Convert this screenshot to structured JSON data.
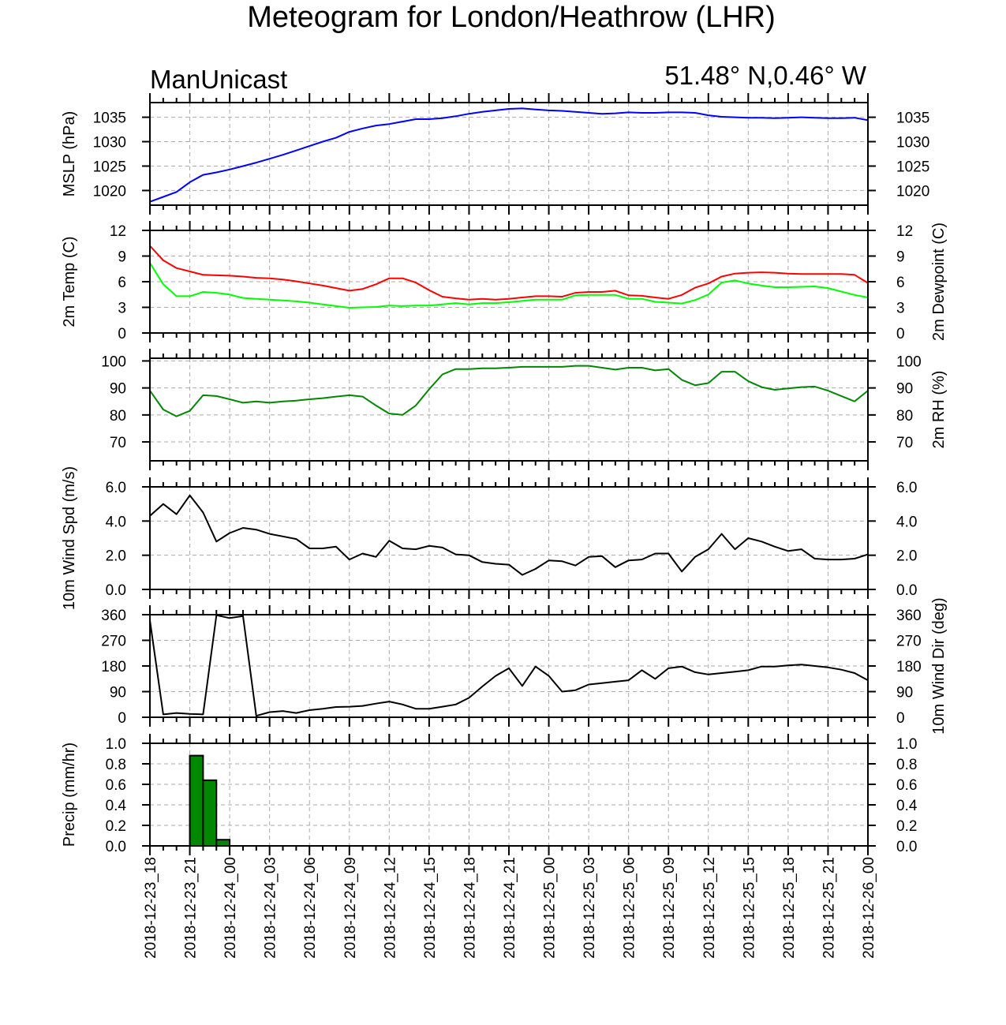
{
  "title": "Meteogram for London/Heathrow (LHR)",
  "subtitle_left": "ManUnicast",
  "subtitle_right": "51.48° N,0.46° W",
  "time_labels": [
    "2018-12-23_18",
    "2018-12-23_21",
    "2018-12-24_00",
    "2018-12-24_03",
    "2018-12-24_06",
    "2018-12-24_09",
    "2018-12-24_12",
    "2018-12-24_15",
    "2018-12-24_18",
    "2018-12-24_21",
    "2018-12-25_00",
    "2018-12-25_03",
    "2018-12-25_06",
    "2018-12-25_09",
    "2018-12-25_12",
    "2018-12-25_15",
    "2018-12-25_18",
    "2018-12-25_21",
    "2018-12-26_00"
  ],
  "colors": {
    "mslp": "#0000ff",
    "temp": "#ff0000",
    "dewpoint": "#00ff00",
    "rh": "#008800",
    "wind": "#000000",
    "precip": "#008800"
  },
  "chart_data": [
    {
      "type": "line",
      "ylabel": "MSLP (hPa)",
      "ylim": [
        1017,
        1038
      ],
      "yticks": [
        "1020",
        "1025",
        "1030",
        "1035"
      ],
      "right_ylabel": "",
      "x_hours": [
        0,
        1,
        2,
        3,
        4,
        5,
        6,
        7,
        8,
        9,
        10,
        11,
        12,
        13,
        14,
        15,
        16,
        17,
        18,
        19,
        20,
        21,
        22,
        23,
        24,
        25,
        26,
        27,
        28,
        29,
        30,
        31,
        32,
        33,
        34,
        35,
        36,
        37,
        38,
        39,
        40,
        41,
        42,
        43,
        44,
        45,
        46,
        47,
        48,
        49,
        50,
        51,
        52,
        53,
        54
      ],
      "series": [
        {
          "name": "",
          "values": [
            1017.7,
            1018.7,
            1019.7,
            1021.7,
            1023.2,
            1023.7,
            1024.3,
            1025.0,
            1025.7,
            1026.5,
            1027.3,
            1028.2,
            1029.1,
            1030.0,
            1030.8,
            1032.0,
            1032.7,
            1033.3,
            1033.6,
            1034.1,
            1034.6,
            1034.6,
            1034.8,
            1035.2,
            1035.7,
            1036.1,
            1036.4,
            1036.7,
            1036.8,
            1036.6,
            1036.4,
            1036.3,
            1036.1,
            1035.9,
            1035.7,
            1035.8,
            1036.0,
            1035.9,
            1035.9,
            1036.0,
            1036.0,
            1035.9,
            1035.4,
            1035.1,
            1035.0,
            1034.9,
            1034.9,
            1034.8,
            1034.9,
            1035.0,
            1034.9,
            1034.8,
            1034.8,
            1034.9,
            1034.4
          ]
        }
      ]
    },
    {
      "type": "line",
      "ylabel": "2m Temp (C)",
      "right_ylabel": "2m Dewpoint (C)",
      "ylim": [
        0,
        12
      ],
      "yticks": [
        "0",
        "3",
        "6",
        "9",
        "12"
      ],
      "x_hours": [
        0,
        1,
        2,
        3,
        4,
        5,
        6,
        7,
        8,
        9,
        10,
        11,
        12,
        13,
        14,
        15,
        16,
        17,
        18,
        19,
        20,
        21,
        22,
        23,
        24,
        25,
        26,
        27,
        28,
        29,
        30,
        31,
        32,
        33,
        34,
        35,
        36,
        37,
        38,
        39,
        40,
        41,
        42,
        43,
        44,
        45,
        46,
        47,
        48,
        49,
        50,
        51,
        52,
        53,
        54
      ],
      "series": [
        {
          "name": "",
          "values": [
            10.2,
            8.5,
            7.6,
            7.2,
            6.8,
            6.75,
            6.7,
            6.6,
            6.45,
            6.4,
            6.25,
            6.05,
            5.8,
            5.55,
            5.25,
            4.95,
            5.15,
            5.7,
            6.4,
            6.4,
            5.9,
            5.0,
            4.25,
            4.05,
            3.9,
            4.0,
            3.9,
            4.0,
            4.15,
            4.3,
            4.3,
            4.25,
            4.7,
            4.8,
            4.8,
            4.95,
            4.4,
            4.35,
            4.15,
            4.0,
            4.45,
            5.3,
            5.8,
            6.6,
            6.95,
            7.05,
            7.1,
            7.05,
            6.95,
            6.9,
            6.9,
            6.9,
            6.9,
            6.8,
            5.85
          ]
        },
        {
          "name": "",
          "values": [
            8.2,
            5.7,
            4.3,
            4.3,
            4.8,
            4.7,
            4.5,
            4.1,
            4.0,
            3.9,
            3.8,
            3.7,
            3.55,
            3.35,
            3.15,
            2.95,
            3.0,
            3.05,
            3.2,
            3.15,
            3.2,
            3.2,
            3.35,
            3.5,
            3.35,
            3.5,
            3.5,
            3.6,
            3.75,
            3.9,
            3.9,
            3.9,
            4.4,
            4.45,
            4.45,
            4.45,
            4.0,
            4.0,
            3.65,
            3.55,
            3.45,
            3.85,
            4.5,
            5.9,
            6.15,
            5.8,
            5.55,
            5.35,
            5.35,
            5.4,
            5.45,
            5.25,
            4.85,
            4.45,
            4.15
          ]
        }
      ]
    },
    {
      "type": "line",
      "ylabel": "",
      "right_ylabel": "2m RH (%)",
      "ylim": [
        63,
        101
      ],
      "yticks": [
        "70",
        "80",
        "90",
        "100"
      ],
      "x_hours": [
        0,
        1,
        2,
        3,
        4,
        5,
        6,
        7,
        8,
        9,
        10,
        11,
        12,
        13,
        14,
        15,
        16,
        17,
        18,
        19,
        20,
        21,
        22,
        23,
        24,
        25,
        26,
        27,
        28,
        29,
        30,
        31,
        32,
        33,
        34,
        35,
        36,
        37,
        38,
        39,
        40,
        41,
        42,
        43,
        44,
        45,
        46,
        47,
        48,
        49,
        50,
        51,
        52,
        53,
        54
      ],
      "series": [
        {
          "name": "",
          "values": [
            89.0,
            82.0,
            79.5,
            81.5,
            87.3,
            87.0,
            85.8,
            84.5,
            85.0,
            84.5,
            85.0,
            85.3,
            85.8,
            86.2,
            86.8,
            87.3,
            86.8,
            83.5,
            80.5,
            80.0,
            83.5,
            89.5,
            95.0,
            97.0,
            97.0,
            97.3,
            97.3,
            97.5,
            97.8,
            97.8,
            97.8,
            97.8,
            98.2,
            98.2,
            97.5,
            96.8,
            97.5,
            97.5,
            96.5,
            97.0,
            93.0,
            91.0,
            91.8,
            96.0,
            96.0,
            92.5,
            90.3,
            89.3,
            89.8,
            90.3,
            90.5,
            89.0,
            87.0,
            85.0,
            89.0
          ]
        }
      ]
    },
    {
      "type": "line",
      "ylabel": "10m Wind Spd (m/s)",
      "right_ylabel": "",
      "ylim": [
        0,
        6
      ],
      "yticks": [
        "0.0",
        "2.0",
        "4.0",
        "6.0"
      ],
      "x_hours": [
        0,
        1,
        2,
        3,
        4,
        5,
        6,
        7,
        8,
        9,
        10,
        11,
        12,
        13,
        14,
        15,
        16,
        17,
        18,
        19,
        20,
        21,
        22,
        23,
        24,
        25,
        26,
        27,
        28,
        29,
        30,
        31,
        32,
        33,
        34,
        35,
        36,
        37,
        38,
        39,
        40,
        41,
        42,
        43,
        44,
        45,
        46,
        47,
        48,
        49,
        50,
        51,
        52,
        53,
        54
      ],
      "series": [
        {
          "name": "",
          "values": [
            4.3,
            5.0,
            4.4,
            5.5,
            4.5,
            2.8,
            3.3,
            3.6,
            3.5,
            3.25,
            3.1,
            2.95,
            2.4,
            2.4,
            2.5,
            1.75,
            2.1,
            1.9,
            2.85,
            2.4,
            2.35,
            2.55,
            2.45,
            2.05,
            2.0,
            1.6,
            1.5,
            1.45,
            0.85,
            1.2,
            1.7,
            1.65,
            1.4,
            1.9,
            1.95,
            1.3,
            1.7,
            1.75,
            2.1,
            2.1,
            1.05,
            1.9,
            2.35,
            3.25,
            2.35,
            3.0,
            2.8,
            2.5,
            2.25,
            2.35,
            1.8,
            1.75,
            1.75,
            1.8,
            2.05
          ]
        }
      ]
    },
    {
      "type": "line",
      "ylabel": "",
      "right_ylabel": "10m Wind Dir (deg)",
      "ylim": [
        0,
        360
      ],
      "yticks": [
        "0",
        "90",
        "180",
        "270",
        "360"
      ],
      "x_hours": [
        0,
        1,
        2,
        3,
        4,
        5,
        6,
        7,
        8,
        9,
        10,
        11,
        12,
        13,
        14,
        15,
        16,
        17,
        18,
        19,
        20,
        21,
        22,
        23,
        24,
        25,
        26,
        27,
        28,
        29,
        30,
        31,
        32,
        33,
        34,
        35,
        36,
        37,
        38,
        39,
        40,
        41,
        42,
        43,
        44,
        45,
        46,
        47,
        48,
        49,
        50,
        51,
        52,
        53,
        54
      ],
      "series": [
        {
          "name": "",
          "values": [
            340,
            10,
            15,
            12,
            10,
            358,
            348,
            355,
            5,
            18,
            22,
            15,
            25,
            30,
            36,
            37,
            40,
            48,
            55,
            45,
            30,
            30,
            37,
            45,
            68,
            108,
            145,
            172,
            110,
            178,
            145,
            90,
            95,
            115,
            120,
            125,
            130,
            165,
            135,
            172,
            178,
            158,
            150,
            155,
            160,
            165,
            178,
            178,
            182,
            185,
            180,
            175,
            167,
            155,
            130
          ]
        }
      ]
    },
    {
      "type": "bar",
      "ylabel": "Precip (mm/hr)",
      "right_ylabel": "",
      "ylim": [
        0,
        1
      ],
      "yticks": [
        "0.0",
        "0.2",
        "0.4",
        "0.6",
        "0.8",
        "1.0"
      ],
      "x_hours": [
        3,
        4,
        5
      ],
      "values": [
        0.88,
        0.64,
        0.06
      ]
    }
  ]
}
